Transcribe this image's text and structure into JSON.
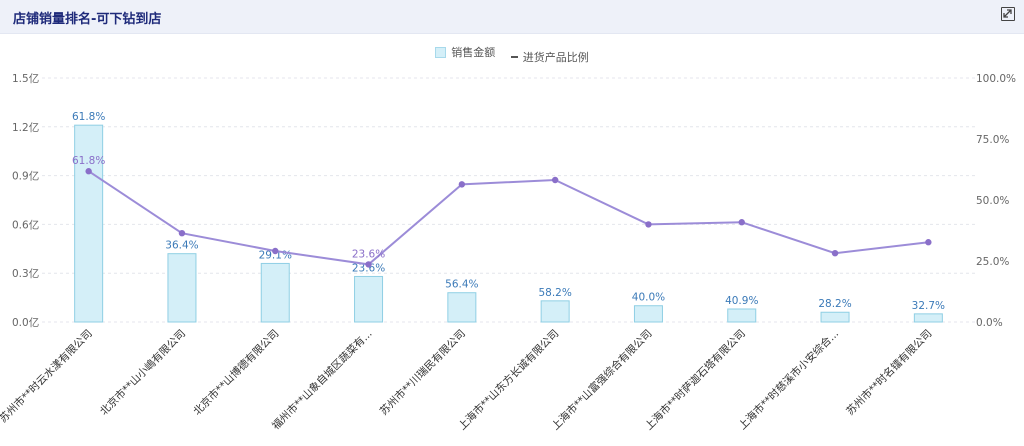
{
  "header": {
    "title": "店铺销量排名-可下钻到店",
    "expand_icon": "expand-icon"
  },
  "legend": {
    "bar_series": "销售金额",
    "line_series": "进货产品比例"
  },
  "colors": {
    "bar_fill": "#d4eff8",
    "bar_stroke": "#8fcfe4",
    "line": "#9c8cd8",
    "point": "#8a6fc9",
    "bar_label": "#3b7ab8",
    "line_label": "#8a6fc9"
  },
  "chart_data": {
    "type": "bar",
    "categories": [
      "苏州市**时云水漾有限公司",
      "北京市**山小嶋有限公司",
      "北京市**山博德有限公司",
      "福州市**山象自城区蔬菜有...",
      "苏州市**川瑞民有限公司",
      "上海市**山东方长诚有限公司",
      "上海市**山富强综合有限公司",
      "上海市**时萨迦石塔有限公司",
      "上海市**时慈溪市小安综合...",
      "苏州市**时名镭有限公司"
    ],
    "series": [
      {
        "name": "销售金额",
        "type": "bar",
        "axis": "left",
        "values": [
          1.21,
          0.42,
          0.36,
          0.28,
          0.18,
          0.13,
          0.1,
          0.08,
          0.06,
          0.05
        ],
        "labels": [
          "61.8%",
          "36.4%",
          "29.1%",
          "23.6%",
          "56.4%",
          "58.2%",
          "40.0%",
          "40.9%",
          "28.2%",
          "32.7%"
        ]
      },
      {
        "name": "进货产品比例",
        "type": "line",
        "axis": "right",
        "values": [
          61.8,
          36.4,
          29.1,
          23.6,
          56.4,
          58.2,
          40.0,
          40.9,
          28.2,
          32.7
        ],
        "labels": [
          "61.8%",
          "",
          "",
          "23.6%",
          "",
          "",
          "",
          "",
          "",
          ""
        ]
      }
    ],
    "y_left": {
      "ticks": [
        "0.0亿",
        "0.3亿",
        "0.6亿",
        "0.9亿",
        "1.2亿",
        "1.5亿"
      ],
      "range": [
        0,
        1.5
      ]
    },
    "y_right": {
      "ticks": [
        "0.0%",
        "25.0%",
        "50.0%",
        "75.0%",
        "100.0%"
      ],
      "range": [
        0,
        100
      ]
    },
    "grid": true,
    "legend_position": "top-center"
  }
}
